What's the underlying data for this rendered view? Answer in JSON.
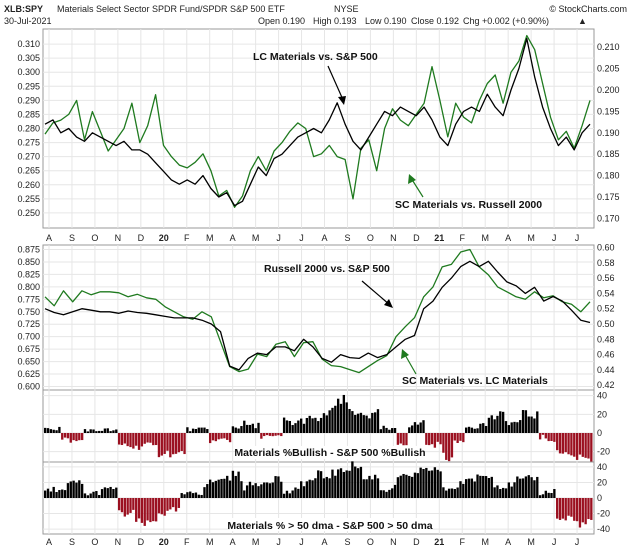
{
  "header": {
    "symbol": "XLB:SPY",
    "description": "Materials Select Sector SPDR Fund/SPDR S&P 500 ETF",
    "exchange": "NYSE",
    "date": "30-Jul-2021",
    "open": "Open 0.190",
    "high": "High 0.193",
    "low": "Low 0.190",
    "close": "Close 0.192",
    "chg": "Chg +0.002 (+0.90%)",
    "chg_arrow": "▲",
    "source": "© StockCharts.com"
  },
  "chart_data": [
    {
      "type": "line",
      "panel": "top",
      "left_ylim": [
        0.245,
        0.315
      ],
      "right_ylim": [
        0.168,
        0.214
      ],
      "left_ticks": [
        0.25,
        0.255,
        0.26,
        0.265,
        0.27,
        0.275,
        0.28,
        0.285,
        0.29,
        0.295,
        0.3,
        0.305,
        0.31
      ],
      "right_ticks": [
        0.17,
        0.175,
        0.18,
        0.185,
        0.19,
        0.195,
        0.2,
        0.205,
        0.21
      ],
      "x_ticks": [
        "A",
        "S",
        "O",
        "N",
        "D",
        "20",
        "F",
        "M",
        "A",
        "M",
        "J",
        "J",
        "A",
        "S",
        "O",
        "N",
        "D",
        "21",
        "F",
        "M",
        "A",
        "M",
        "J",
        "J"
      ],
      "annotations": [
        "LC Materials vs. S&P 500",
        "SC Materials vs. Russell 2000"
      ],
      "series": [
        {
          "axis": "right",
          "color": "#000000",
          "values": [
            0.192,
            0.193,
            0.19,
            0.191,
            0.189,
            0.188,
            0.19,
            0.189,
            0.188,
            0.187,
            0.188,
            0.186,
            0.186,
            0.185,
            0.183,
            0.181,
            0.179,
            0.178,
            0.179,
            0.178,
            0.18,
            0.177,
            0.175,
            0.176,
            0.173,
            0.174,
            0.178,
            0.182,
            0.18,
            0.184,
            0.185,
            0.187,
            0.189,
            0.19,
            0.191,
            0.19,
            0.193,
            0.197,
            0.192,
            0.188,
            0.186,
            0.189,
            0.192,
            0.195,
            0.194,
            0.196,
            0.195,
            0.194,
            0.196,
            0.193,
            0.189,
            0.187,
            0.192,
            0.195,
            0.196,
            0.195,
            0.199,
            0.196,
            0.194,
            0.2,
            0.205,
            0.212,
            0.203,
            0.196,
            0.191,
            0.187,
            0.189,
            0.186,
            0.19,
            0.192
          ]
        },
        {
          "axis": "left",
          "color": "#1f7a1f",
          "values": [
            0.278,
            0.282,
            0.283,
            0.285,
            0.29,
            0.276,
            0.286,
            0.279,
            0.272,
            0.276,
            0.28,
            0.289,
            0.275,
            0.281,
            0.292,
            0.274,
            0.27,
            0.267,
            0.266,
            0.268,
            0.271,
            0.265,
            0.256,
            0.258,
            0.252,
            0.256,
            0.265,
            0.27,
            0.265,
            0.272,
            0.275,
            0.279,
            0.282,
            0.28,
            0.27,
            0.271,
            0.274,
            0.27,
            0.269,
            0.255,
            0.273,
            0.276,
            0.265,
            0.28,
            0.287,
            0.283,
            0.281,
            0.285,
            0.289,
            0.302,
            0.29,
            0.277,
            0.289,
            0.284,
            0.282,
            0.29,
            0.296,
            0.299,
            0.289,
            0.3,
            0.304,
            0.313,
            0.308,
            0.296,
            0.284,
            0.276,
            0.279,
            0.273,
            0.281,
            0.29
          ]
        }
      ]
    },
    {
      "type": "line",
      "panel": "middle",
      "left_ylim": [
        0.595,
        0.882
      ],
      "right_ylim": [
        0.415,
        0.602
      ],
      "left_ticks": [
        0.6,
        0.625,
        0.65,
        0.675,
        0.7,
        0.725,
        0.75,
        0.775,
        0.8,
        0.825,
        0.85,
        0.875
      ],
      "right_ticks": [
        0.42,
        0.44,
        0.46,
        0.48,
        0.5,
        0.52,
        0.54,
        0.56,
        0.58,
        0.6
      ],
      "annotations": [
        "Russell 2000 vs. S&P 500",
        "SC Materials vs. LC Materials"
      ],
      "series": [
        {
          "axis": "right",
          "color": "#000000",
          "values": [
            0.52,
            0.515,
            0.512,
            0.516,
            0.52,
            0.518,
            0.516,
            0.516,
            0.514,
            0.517,
            0.515,
            0.514,
            0.512,
            0.51,
            0.508,
            0.508,
            0.508,
            0.505,
            0.5,
            0.49,
            0.445,
            0.44,
            0.455,
            0.462,
            0.46,
            0.47,
            0.47,
            0.465,
            0.48,
            0.47,
            0.455,
            0.45,
            0.46,
            0.456,
            0.455,
            0.462,
            0.456,
            0.46,
            0.47,
            0.48,
            0.485,
            0.52,
            0.53,
            0.548,
            0.56,
            0.575,
            0.582,
            0.575,
            0.582,
            0.568,
            0.555,
            0.55,
            0.54,
            0.548,
            0.53,
            0.536,
            0.53,
            0.518,
            0.505,
            0.502
          ]
        },
        {
          "axis": "left",
          "color": "#1f7a1f",
          "values": [
            0.78,
            0.762,
            0.792,
            0.77,
            0.792,
            0.784,
            0.79,
            0.79,
            0.788,
            0.78,
            0.785,
            0.778,
            0.775,
            0.76,
            0.75,
            0.74,
            0.735,
            0.75,
            0.74,
            0.69,
            0.64,
            0.63,
            0.635,
            0.665,
            0.66,
            0.685,
            0.69,
            0.66,
            0.688,
            0.69,
            0.655,
            0.642,
            0.64,
            0.634,
            0.628,
            0.64,
            0.652,
            0.662,
            0.7,
            0.72,
            0.738,
            0.78,
            0.8,
            0.84,
            0.845,
            0.87,
            0.875,
            0.84,
            0.824,
            0.8,
            0.79,
            0.78,
            0.775,
            0.79,
            0.778,
            0.782,
            0.77,
            0.765,
            0.75,
            0.77
          ]
        }
      ]
    },
    {
      "type": "bar",
      "panel": "breadth-bullish",
      "title": "Materials %Bullish - S&P 500 %Bullish",
      "ylim": [
        -30,
        45
      ],
      "right_ticks": [
        40,
        20,
        0,
        -20
      ],
      "segments": [
        [
          0,
          6,
          6,
          3
        ],
        [
          6,
          14,
          -8,
          3
        ],
        [
          14,
          26,
          3,
          2
        ],
        [
          26,
          40,
          -14,
          4
        ],
        [
          40,
          50,
          -22,
          4
        ],
        [
          50,
          58,
          4,
          2
        ],
        [
          58,
          66,
          -8,
          3
        ],
        [
          66,
          76,
          8,
          4
        ],
        [
          76,
          84,
          -4,
          3
        ],
        [
          84,
          92,
          12,
          4
        ],
        [
          92,
          100,
          15,
          5
        ],
        [
          100,
          108,
          30,
          8
        ],
        [
          108,
          118,
          20,
          6
        ],
        [
          118,
          124,
          4,
          3
        ],
        [
          124,
          128,
          -12,
          3
        ],
        [
          128,
          134,
          10,
          4
        ],
        [
          134,
          140,
          -12,
          3
        ],
        [
          140,
          144,
          -26,
          4
        ],
        [
          144,
          148,
          -10,
          3
        ],
        [
          148,
          156,
          8,
          3
        ],
        [
          156,
          162,
          18,
          4
        ],
        [
          162,
          168,
          12,
          3
        ],
        [
          168,
          174,
          20,
          4
        ],
        [
          174,
          180,
          -6,
          3
        ],
        [
          180,
          186,
          -22,
          4
        ],
        [
          186,
          193,
          -26,
          4
        ]
      ]
    },
    {
      "type": "bar",
      "panel": "breadth-dma",
      "title": "Materials % > 50 dma - S&P 500 > 50 dma",
      "ylim": [
        -45,
        45
      ],
      "right_ticks": [
        40,
        20,
        0,
        -20,
        -40
      ],
      "segments": [
        [
          0,
          8,
          10,
          4
        ],
        [
          8,
          14,
          18,
          5
        ],
        [
          14,
          20,
          6,
          3
        ],
        [
          20,
          26,
          12,
          4
        ],
        [
          26,
          32,
          -20,
          4
        ],
        [
          32,
          40,
          -32,
          5
        ],
        [
          40,
          48,
          -18,
          5
        ],
        [
          48,
          56,
          6,
          3
        ],
        [
          56,
          62,
          20,
          5
        ],
        [
          62,
          70,
          28,
          6
        ],
        [
          70,
          76,
          16,
          5
        ],
        [
          76,
          84,
          24,
          6
        ],
        [
          84,
          90,
          8,
          4
        ],
        [
          90,
          96,
          22,
          5
        ],
        [
          96,
          104,
          30,
          6
        ],
        [
          104,
          112,
          40,
          6
        ],
        [
          112,
          118,
          26,
          5
        ],
        [
          118,
          124,
          12,
          4
        ],
        [
          124,
          132,
          28,
          5
        ],
        [
          132,
          140,
          36,
          5
        ],
        [
          140,
          146,
          12,
          4
        ],
        [
          146,
          152,
          22,
          4
        ],
        [
          152,
          158,
          30,
          5
        ],
        [
          158,
          166,
          16,
          4
        ],
        [
          166,
          174,
          24,
          5
        ],
        [
          174,
          180,
          8,
          4
        ],
        [
          180,
          186,
          -26,
          5
        ],
        [
          186,
          193,
          -32,
          5
        ]
      ]
    }
  ]
}
